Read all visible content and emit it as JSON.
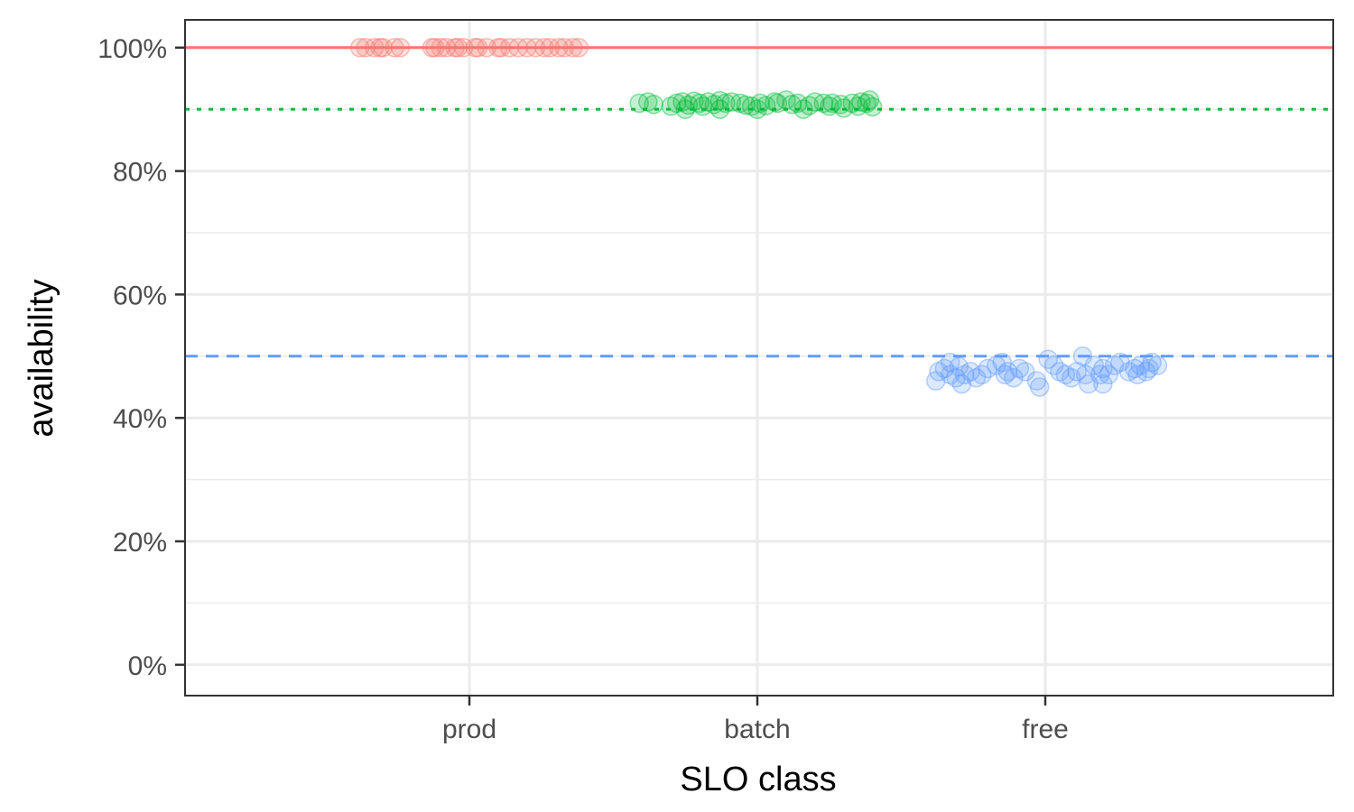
{
  "chart_data": {
    "type": "scatter",
    "xlabel": "SLO class",
    "ylabel": "availability",
    "categories": [
      "prod",
      "batch",
      "free"
    ],
    "ylim": [
      -0.05,
      1.045
    ],
    "y_ticks": [
      0,
      0.2,
      0.4,
      0.6,
      0.8,
      1.0
    ],
    "y_tick_labels": [
      "0%",
      "20%",
      "40%",
      "60%",
      "80%",
      "100%"
    ],
    "y_minor_ticks": [
      0.1,
      0.3,
      0.5,
      0.7,
      0.9
    ],
    "grid": true,
    "legend": "none",
    "colors": {
      "prod": "#F8766D",
      "batch": "#00BA38",
      "free": "#619CFF"
    },
    "reference_lines": [
      {
        "category": "prod",
        "y": 1.0,
        "style": "solid",
        "color": "#F8766D"
      },
      {
        "category": "batch",
        "y": 0.9,
        "style": "dotted",
        "color": "#00BA38"
      },
      {
        "category": "free",
        "y": 0.5,
        "style": "dashed",
        "color": "#619CFF"
      }
    ],
    "series": [
      {
        "category": "prod",
        "points": [
          [
            -0.38,
            1.0
          ],
          [
            -0.36,
            1.0
          ],
          [
            -0.33,
            1.0
          ],
          [
            -0.31,
            1.0
          ],
          [
            -0.3,
            1.0
          ],
          [
            -0.26,
            1.0
          ],
          [
            -0.24,
            1.0
          ],
          [
            -0.13,
            1.0
          ],
          [
            -0.12,
            1.0
          ],
          [
            -0.1,
            1.0
          ],
          [
            -0.08,
            1.0
          ],
          [
            -0.05,
            1.0
          ],
          [
            -0.04,
            1.0
          ],
          [
            -0.02,
            1.0
          ],
          [
            0.02,
            1.0
          ],
          [
            0.03,
            1.0
          ],
          [
            0.06,
            1.0
          ],
          [
            0.1,
            1.0
          ],
          [
            0.11,
            1.0
          ],
          [
            0.14,
            1.0
          ],
          [
            0.17,
            1.0
          ],
          [
            0.2,
            1.0
          ],
          [
            0.23,
            1.0
          ],
          [
            0.26,
            1.0
          ],
          [
            0.28,
            1.0
          ],
          [
            0.31,
            1.0
          ],
          [
            0.33,
            1.0
          ],
          [
            0.36,
            1.0
          ],
          [
            0.38,
            1.0
          ]
        ]
      },
      {
        "category": "batch",
        "points": [
          [
            -0.41,
            0.91
          ],
          [
            -0.38,
            0.912
          ],
          [
            -0.36,
            0.908
          ],
          [
            -0.3,
            0.905
          ],
          [
            -0.28,
            0.91
          ],
          [
            -0.26,
            0.912
          ],
          [
            -0.25,
            0.9
          ],
          [
            -0.24,
            0.907
          ],
          [
            -0.22,
            0.913
          ],
          [
            -0.2,
            0.91
          ],
          [
            -0.19,
            0.905
          ],
          [
            -0.17,
            0.912
          ],
          [
            -0.15,
            0.908
          ],
          [
            -0.13,
            0.914
          ],
          [
            -0.13,
            0.9
          ],
          [
            -0.11,
            0.91
          ],
          [
            -0.09,
            0.912
          ],
          [
            -0.06,
            0.91
          ],
          [
            -0.04,
            0.907
          ],
          [
            -0.02,
            0.905
          ],
          [
            0.0,
            0.9
          ],
          [
            0.01,
            0.91
          ],
          [
            0.03,
            0.906
          ],
          [
            0.06,
            0.912
          ],
          [
            0.07,
            0.91
          ],
          [
            0.1,
            0.915
          ],
          [
            0.12,
            0.908
          ],
          [
            0.14,
            0.91
          ],
          [
            0.16,
            0.9
          ],
          [
            0.18,
            0.906
          ],
          [
            0.2,
            0.912
          ],
          [
            0.23,
            0.91
          ],
          [
            0.25,
            0.905
          ],
          [
            0.26,
            0.91
          ],
          [
            0.29,
            0.908
          ],
          [
            0.3,
            0.902
          ],
          [
            0.33,
            0.91
          ],
          [
            0.35,
            0.905
          ],
          [
            0.36,
            0.912
          ],
          [
            0.38,
            0.91
          ],
          [
            0.39,
            0.915
          ],
          [
            0.4,
            0.904
          ]
        ]
      },
      {
        "category": "free",
        "points": [
          [
            -0.38,
            0.46
          ],
          [
            -0.37,
            0.475
          ],
          [
            -0.35,
            0.48
          ],
          [
            -0.33,
            0.49
          ],
          [
            -0.33,
            0.47
          ],
          [
            -0.31,
            0.465
          ],
          [
            -0.3,
            0.483
          ],
          [
            -0.29,
            0.455
          ],
          [
            -0.28,
            0.47
          ],
          [
            -0.26,
            0.475
          ],
          [
            -0.24,
            0.465
          ],
          [
            -0.22,
            0.47
          ],
          [
            -0.2,
            0.48
          ],
          [
            -0.17,
            0.485
          ],
          [
            -0.15,
            0.49
          ],
          [
            -0.14,
            0.47
          ],
          [
            -0.13,
            0.475
          ],
          [
            -0.11,
            0.465
          ],
          [
            -0.09,
            0.48
          ],
          [
            -0.07,
            0.475
          ],
          [
            -0.03,
            0.46
          ],
          [
            -0.02,
            0.45
          ],
          [
            0.01,
            0.495
          ],
          [
            0.03,
            0.485
          ],
          [
            0.05,
            0.475
          ],
          [
            0.07,
            0.47
          ],
          [
            0.09,
            0.465
          ],
          [
            0.11,
            0.475
          ],
          [
            0.13,
            0.5
          ],
          [
            0.14,
            0.47
          ],
          [
            0.15,
            0.455
          ],
          [
            0.17,
            0.485
          ],
          [
            0.19,
            0.47
          ],
          [
            0.2,
            0.48
          ],
          [
            0.2,
            0.455
          ],
          [
            0.22,
            0.47
          ],
          [
            0.24,
            0.485
          ],
          [
            0.26,
            0.49
          ],
          [
            0.29,
            0.475
          ],
          [
            0.31,
            0.48
          ],
          [
            0.32,
            0.47
          ],
          [
            0.33,
            0.485
          ],
          [
            0.35,
            0.475
          ],
          [
            0.36,
            0.48
          ],
          [
            0.37,
            0.49
          ],
          [
            0.39,
            0.485
          ]
        ]
      }
    ]
  }
}
